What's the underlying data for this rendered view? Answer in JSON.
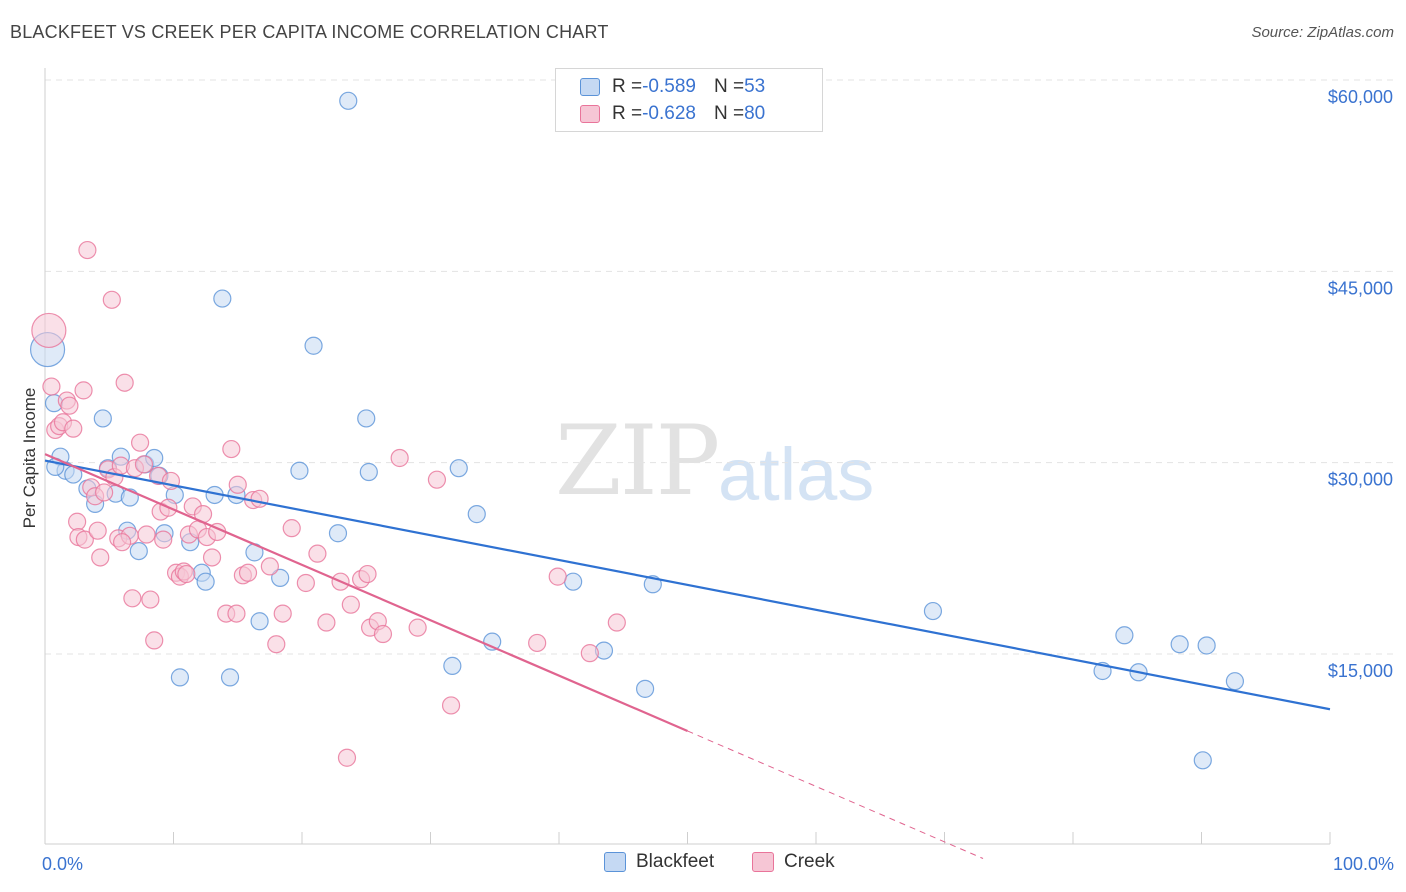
{
  "header": {
    "title": "BLACKFEET VS CREEK PER CAPITA INCOME CORRELATION CHART",
    "source": "Source: ZipAtlas.com"
  },
  "watermark": {
    "part1": "ZIP",
    "part2": "atlas"
  },
  "legend": {
    "rows": [
      {
        "r_label": "R = ",
        "r_value": "-0.589",
        "n_label": "N = ",
        "n_value": "53"
      },
      {
        "r_label": "R = ",
        "r_value": "-0.628",
        "n_label": "N = ",
        "n_value": "80"
      }
    ]
  },
  "colors": {
    "blackfeet": "#5b93d8",
    "blackfeet_fill": "#c5d9f3",
    "creek": "#e9749a",
    "creek_fill": "#f6c6d5",
    "axis_label": "#3a73d0",
    "grid": "#e3e3e3"
  },
  "chart_data": {
    "type": "scatter",
    "title": "BLACKFEET VS CREEK PER CAPITA INCOME CORRELATION CHART",
    "xlabel": "",
    "ylabel": "Per Capita Income",
    "xlim": [
      0,
      100
    ],
    "ylim": [
      0,
      62000
    ],
    "x_tick_labels": [
      "0.0%",
      "100.0%"
    ],
    "y_ticks": [
      15000,
      30000,
      45000,
      60000
    ],
    "y_tick_labels": [
      "$15,000",
      "$30,000",
      "$45,000",
      "$60,000"
    ],
    "grid": true,
    "legend_placement": "top-center",
    "series": [
      {
        "name": "Blackfeet",
        "r": -0.589,
        "n": 53,
        "trend": {
          "x": [
            0,
            100
          ],
          "y": [
            31500,
            12000
          ]
        },
        "points": [
          [
            0.2,
            40200
          ],
          [
            0.7,
            36000
          ],
          [
            1.2,
            31800
          ],
          [
            1.6,
            30700
          ],
          [
            2.2,
            30400
          ],
          [
            3.3,
            29300
          ],
          [
            3.9,
            28100
          ],
          [
            4.5,
            34800
          ],
          [
            4.9,
            30900
          ],
          [
            5.5,
            28900
          ],
          [
            5.9,
            31800
          ],
          [
            6.4,
            26000
          ],
          [
            6.6,
            28600
          ],
          [
            7.3,
            24400
          ],
          [
            7.8,
            31200
          ],
          [
            8.5,
            31700
          ],
          [
            8.9,
            30300
          ],
          [
            9.3,
            25800
          ],
          [
            10.1,
            28800
          ],
          [
            10.5,
            14500
          ],
          [
            11.3,
            25100
          ],
          [
            12.2,
            22700
          ],
          [
            12.5,
            22000
          ],
          [
            13.2,
            28800
          ],
          [
            13.8,
            44200
          ],
          [
            14.4,
            14500
          ],
          [
            14.9,
            28800
          ],
          [
            16.3,
            24300
          ],
          [
            16.7,
            18900
          ],
          [
            18.3,
            22300
          ],
          [
            19.8,
            30700
          ],
          [
            20.9,
            40500
          ],
          [
            22.8,
            25800
          ],
          [
            23.6,
            59700
          ],
          [
            25.0,
            34800
          ],
          [
            25.2,
            30600
          ],
          [
            31.7,
            15400
          ],
          [
            32.2,
            30900
          ],
          [
            33.6,
            27300
          ],
          [
            34.8,
            17300
          ],
          [
            41.1,
            22000
          ],
          [
            43.5,
            16600
          ],
          [
            46.7,
            13600
          ],
          [
            47.3,
            21800
          ],
          [
            69.1,
            19700
          ],
          [
            82.3,
            15000
          ],
          [
            84.0,
            17800
          ],
          [
            85.1,
            14900
          ],
          [
            88.3,
            17100
          ],
          [
            90.1,
            8000
          ],
          [
            90.4,
            17000
          ],
          [
            92.6,
            14200
          ],
          [
            0.8,
            31000
          ]
        ]
      },
      {
        "name": "Creek",
        "r": -0.628,
        "n": 80,
        "trend": {
          "x": [
            0,
            50
          ],
          "y": [
            32000,
            10300
          ]
        },
        "trend_dashed": {
          "x": [
            50,
            73
          ],
          "y": [
            10300,
            300
          ]
        },
        "points": [
          [
            0.3,
            41700
          ],
          [
            0.5,
            37300
          ],
          [
            0.8,
            33900
          ],
          [
            1.1,
            34200
          ],
          [
            1.4,
            34500
          ],
          [
            1.7,
            36200
          ],
          [
            1.9,
            35800
          ],
          [
            2.2,
            34000
          ],
          [
            2.5,
            26700
          ],
          [
            2.6,
            25500
          ],
          [
            3.0,
            37000
          ],
          [
            3.1,
            25300
          ],
          [
            3.3,
            48000
          ],
          [
            3.6,
            29400
          ],
          [
            3.9,
            28700
          ],
          [
            4.1,
            26000
          ],
          [
            4.3,
            23900
          ],
          [
            4.6,
            29000
          ],
          [
            4.9,
            30800
          ],
          [
            5.2,
            44100
          ],
          [
            5.4,
            30200
          ],
          [
            5.7,
            25400
          ],
          [
            5.9,
            31100
          ],
          [
            6.2,
            37600
          ],
          [
            6.6,
            25600
          ],
          [
            6.8,
            20700
          ],
          [
            7.0,
            30900
          ],
          [
            7.4,
            32900
          ],
          [
            7.7,
            31200
          ],
          [
            7.9,
            25700
          ],
          [
            8.2,
            20600
          ],
          [
            8.5,
            17400
          ],
          [
            8.8,
            30300
          ],
          [
            9.0,
            27500
          ],
          [
            9.2,
            25300
          ],
          [
            9.6,
            27800
          ],
          [
            9.8,
            29900
          ],
          [
            10.2,
            22700
          ],
          [
            10.5,
            22400
          ],
          [
            10.8,
            22800
          ],
          [
            11.2,
            25700
          ],
          [
            11.5,
            27900
          ],
          [
            11.9,
            26100
          ],
          [
            12.3,
            27300
          ],
          [
            12.6,
            25500
          ],
          [
            13.0,
            23900
          ],
          [
            13.4,
            25900
          ],
          [
            14.1,
            19500
          ],
          [
            14.5,
            32400
          ],
          [
            14.9,
            19500
          ],
          [
            15.4,
            22500
          ],
          [
            15.8,
            22700
          ],
          [
            16.2,
            28400
          ],
          [
            16.7,
            28500
          ],
          [
            17.5,
            23200
          ],
          [
            18.0,
            17100
          ],
          [
            18.5,
            19500
          ],
          [
            19.2,
            26200
          ],
          [
            20.3,
            21900
          ],
          [
            21.2,
            24200
          ],
          [
            21.9,
            18800
          ],
          [
            23.0,
            22000
          ],
          [
            23.5,
            8200
          ],
          [
            23.8,
            20200
          ],
          [
            24.6,
            22200
          ],
          [
            25.1,
            22600
          ],
          [
            25.3,
            18400
          ],
          [
            25.9,
            18900
          ],
          [
            26.3,
            17900
          ],
          [
            27.6,
            31700
          ],
          [
            29.0,
            18400
          ],
          [
            30.5,
            30000
          ],
          [
            31.6,
            12300
          ],
          [
            38.3,
            17200
          ],
          [
            39.9,
            22400
          ],
          [
            42.4,
            16400
          ],
          [
            44.5,
            18800
          ],
          [
            15.0,
            29600
          ],
          [
            11.0,
            22600
          ],
          [
            6.0,
            25100
          ]
        ]
      }
    ]
  }
}
